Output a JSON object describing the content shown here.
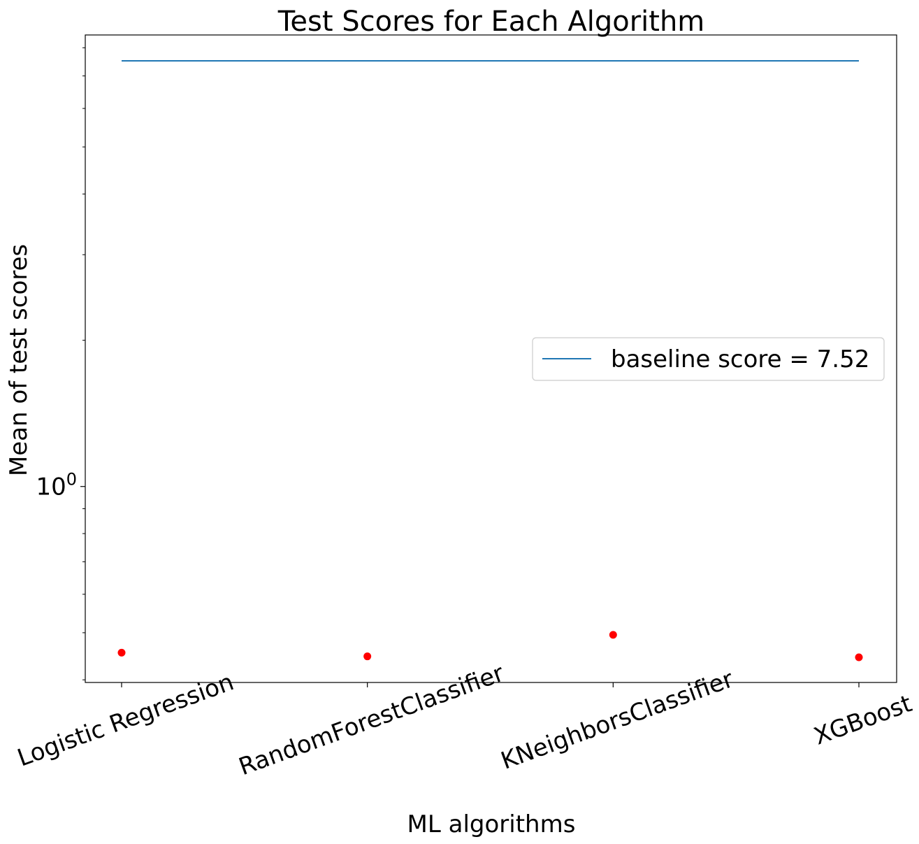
{
  "chart_data": {
    "type": "scatter",
    "title": "Test Scores for Each Algorithm",
    "xlabel": "ML algorithms",
    "ylabel": "Mean of test scores",
    "yscale": "log",
    "ylim": [
      0.395,
      8.5
    ],
    "y_tick_base": "10",
    "y_tick_exponent": "0",
    "grid": false,
    "legend_position": "right",
    "categories": [
      "Logistic Regression",
      "RandomForestClassifier",
      "KNeighborsClassifier",
      "XGBoost"
    ],
    "series": [
      {
        "type": "scatter",
        "color": "#ff0000",
        "values": [
          0.455,
          0.447,
          0.495,
          0.445
        ]
      },
      {
        "type": "line",
        "name": "baseline score = 7.52",
        "color": "#1f77b4",
        "y": 7.52
      }
    ]
  }
}
